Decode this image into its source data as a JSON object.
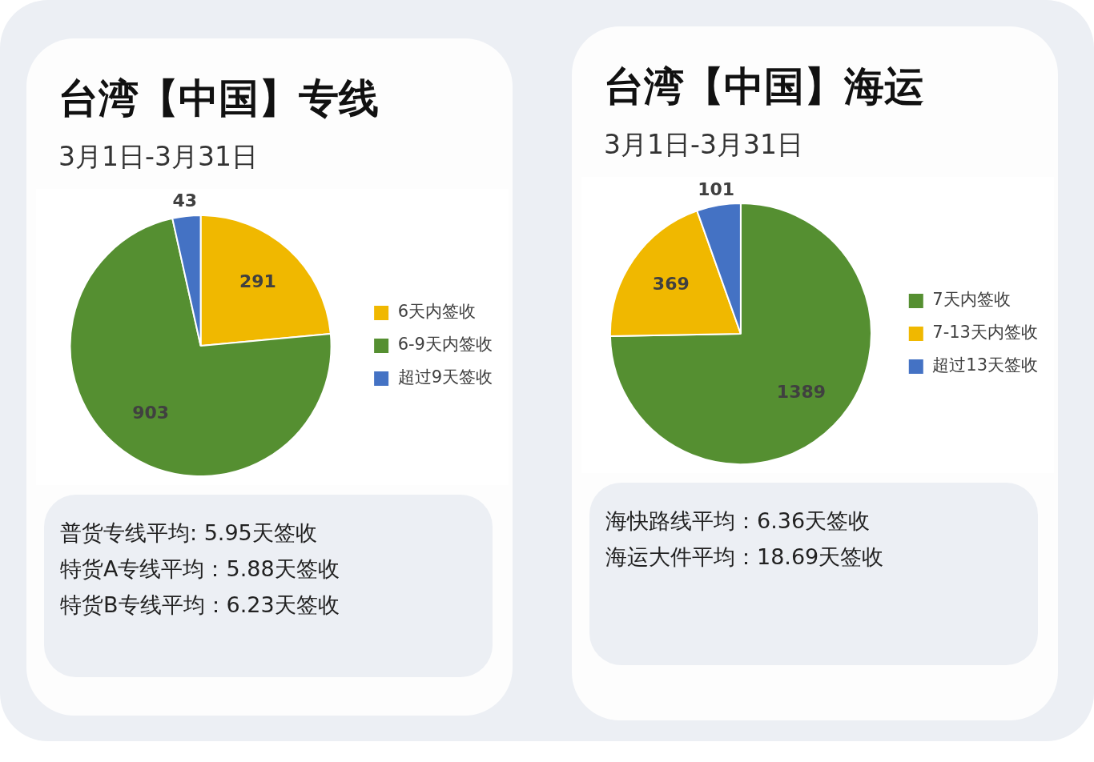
{
  "chart_data": [
    {
      "type": "pie",
      "title": "台湾【中国】专线",
      "subtitle": "3月1日-3月31日",
      "categories": [
        "6天内签收",
        "6-9天内签收",
        "超过9天签收"
      ],
      "values": [
        291,
        903,
        43
      ],
      "colors": [
        "#f0b800",
        "#558f31",
        "#4472c4"
      ],
      "data_labels": true,
      "legend": "right",
      "annotations": [
        "普货专线平均: 5.95天签收",
        "特货A专线平均：5.88天签收",
        "特货B专线平均：6.23天签收"
      ]
    },
    {
      "type": "pie",
      "title": "台湾【中国】海运",
      "subtitle": "3月1日-3月31日",
      "categories": [
        "7天内签收",
        "7-13天内签收",
        "超过13天签收"
      ],
      "values": [
        1389,
        369,
        101
      ],
      "colors": [
        "#558f31",
        "#f0b800",
        "#4472c4"
      ],
      "data_labels": true,
      "legend": "right",
      "annotations": [
        "海快路线平均：6.36天签收",
        "海运大件平均：18.69天签收"
      ]
    }
  ]
}
